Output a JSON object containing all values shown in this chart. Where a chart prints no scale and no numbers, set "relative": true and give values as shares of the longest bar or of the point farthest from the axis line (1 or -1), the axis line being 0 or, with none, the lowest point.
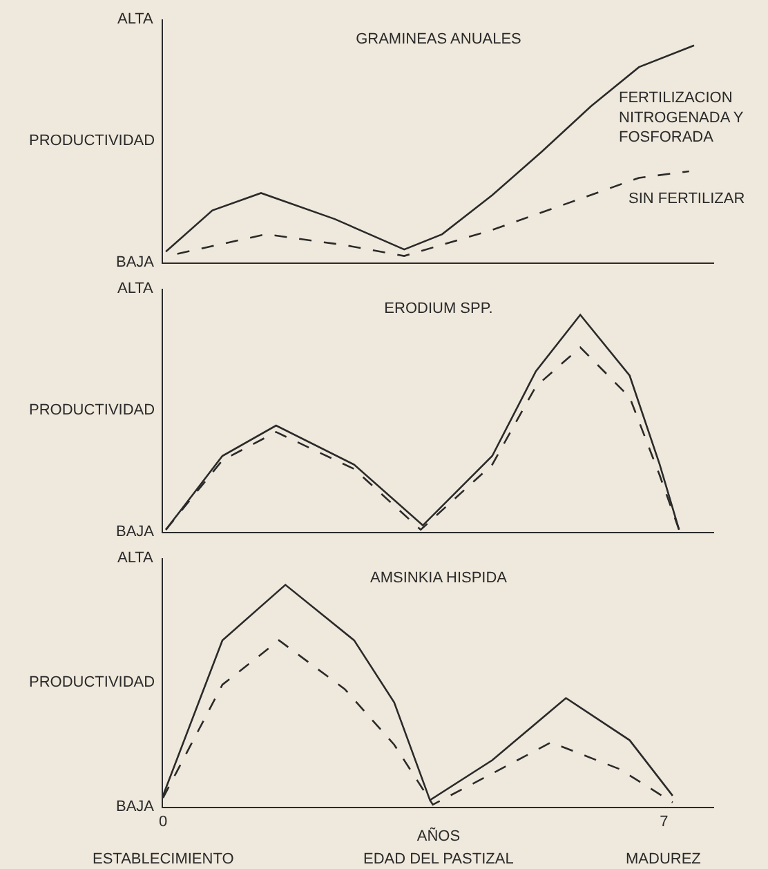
{
  "chart_data": [
    {
      "type": "line",
      "title": "GRAMINEAS ANUALES",
      "relative": true,
      "xlim": [
        0,
        7.7
      ],
      "grid": false,
      "legend": false,
      "marker": "none",
      "annotations": [
        "ALTA",
        "PRODUCTIVIDAD",
        "BAJA"
      ],
      "series": [
        {
          "name": "FERTILIZACION NITROGENADA Y FOSFORADA",
          "color": "#2a2a2a",
          "line_style": "solid",
          "x": [
            0.04,
            0.69,
            1.37,
            2.4,
            3.37,
            3.9,
            4.6,
            5.29,
            5.98,
            6.65,
            7.42
          ],
          "values": [
            0.05,
            0.24,
            0.32,
            0.2,
            0.06,
            0.13,
            0.31,
            0.51,
            0.72,
            0.9,
            1
          ]
        },
        {
          "name": "SIN FERTILIZAR",
          "color": "#2a2a2a",
          "line_style": "dashed",
          "x": [
            0.2,
            1.44,
            2.54,
            3.37,
            4.6,
            5.63,
            6.65,
            7.35
          ],
          "values": [
            0.04,
            0.13,
            0.08,
            0.03,
            0.15,
            0.27,
            0.39,
            0.42
          ]
        }
      ]
    },
    {
      "type": "line",
      "title": "ERODIUM SPP.",
      "relative": true,
      "xlim": [
        0,
        7.7
      ],
      "grid": false,
      "legend": false,
      "marker": "none",
      "annotations": [
        "ALTA",
        "PRODUCTIVIDAD",
        "BAJA"
      ],
      "series": [
        {
          "color": "#2a2a2a",
          "line_style": "solid",
          "x": [
            0.04,
            0.83,
            1.58,
            2.67,
            3.63,
            4.6,
            5.21,
            5.83,
            6.52,
            6.94,
            7.21
          ],
          "values": [
            0.01,
            0.35,
            0.49,
            0.31,
            0.03,
            0.35,
            0.74,
            1,
            0.72,
            0.31,
            0.01
          ]
        },
        {
          "color": "#2a2a2a",
          "line_style": "dashed",
          "x": [
            0.04,
            0.83,
            1.58,
            2.67,
            3.6,
            4.6,
            5.21,
            5.83,
            6.52,
            6.94,
            7.21
          ],
          "values": [
            0.01,
            0.33,
            0.46,
            0.29,
            0.01,
            0.31,
            0.67,
            0.85,
            0.62,
            0.26,
            0.01
          ]
        }
      ]
    },
    {
      "type": "line",
      "title": "AMSINKIA HISPIDA",
      "xlabel": "AÑOS",
      "relative": true,
      "xlim": [
        0,
        7.7
      ],
      "xticks": [
        0,
        7
      ],
      "grid": false,
      "legend": false,
      "marker": "none",
      "annotations": [
        "ALTA",
        "PRODUCTIVIDAD",
        "BAJA",
        "ESTABLECIMIENTO",
        "EDAD DEL PASTIZAL",
        "MADUREZ"
      ],
      "series": [
        {
          "color": "#2a2a2a",
          "line_style": "solid",
          "x": [
            0,
            0.83,
            1.71,
            2.67,
            3.23,
            3.73,
            4.6,
            5.63,
            6.52,
            7.12
          ],
          "values": [
            0.05,
            0.75,
            1,
            0.75,
            0.47,
            0.03,
            0.21,
            0.49,
            0.3,
            0.05
          ]
        },
        {
          "color": "#2a2a2a",
          "line_style": "dashed",
          "x": [
            0,
            0.83,
            1.62,
            2.54,
            3.23,
            3.77,
            4.6,
            5.42,
            6.38,
            7.12
          ],
          "values": [
            0.04,
            0.55,
            0.75,
            0.53,
            0.28,
            0.01,
            0.15,
            0.29,
            0.17,
            0.02
          ]
        }
      ]
    }
  ]
}
